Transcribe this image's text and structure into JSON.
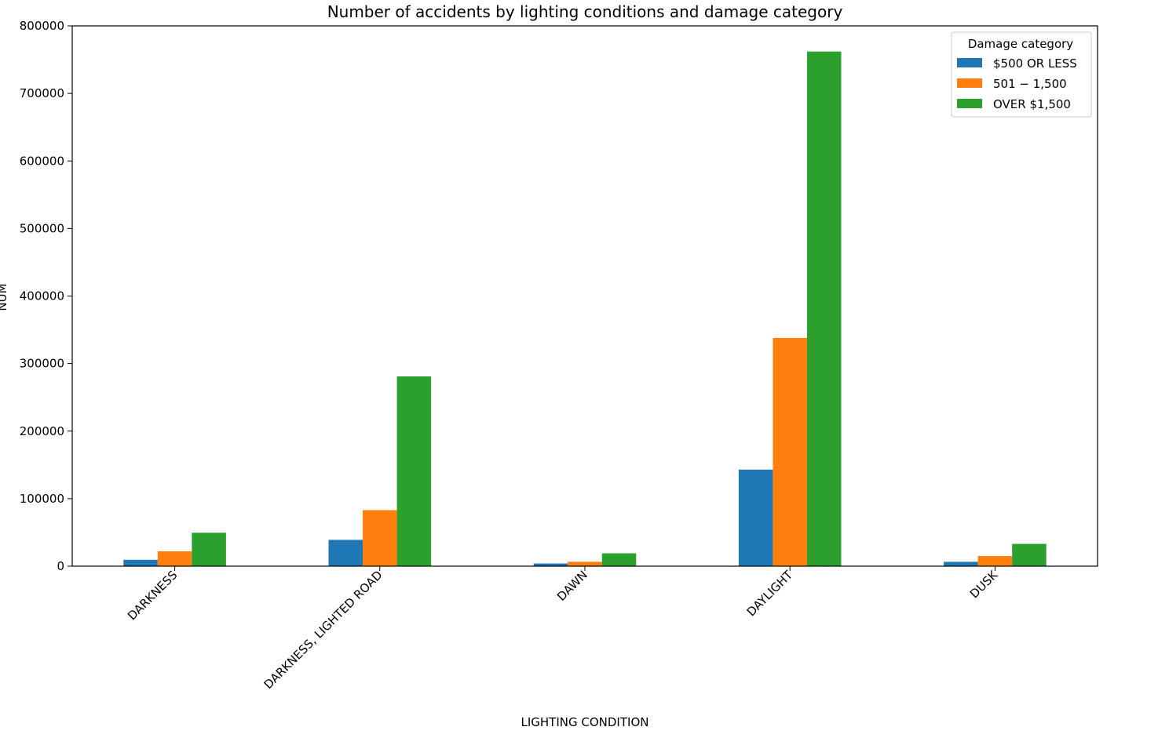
{
  "chart_data": {
    "type": "bar",
    "title": "Number of accidents by lighting conditions and damage category",
    "xlabel": "LIGHTING CONDITION",
    "ylabel": "NUM",
    "ylim": [
      0,
      800000
    ],
    "yticks": [
      0,
      100000,
      200000,
      300000,
      400000,
      500000,
      600000,
      700000,
      800000
    ],
    "grid": false,
    "legend": {
      "title": "Damage category",
      "placement": "top-right"
    },
    "categories": [
      "DARKNESS",
      "DARKNESS, LIGHTED ROAD",
      "DAWN",
      "DAYLIGHT",
      "DUSK"
    ],
    "series": [
      {
        "name": "$500 OR LESS",
        "color": "#1f77b4",
        "values": [
          9500,
          39000,
          4000,
          143000,
          6500
        ]
      },
      {
        "name": "$501 - $1,500",
        "label": "501 − 1,500",
        "color": "#ff7f0e",
        "values": [
          22000,
          83000,
          6500,
          338000,
          15000
        ]
      },
      {
        "name": "OVER $1,500",
        "color": "#2ca02c",
        "values": [
          49500,
          281000,
          19000,
          762000,
          33000
        ]
      }
    ]
  }
}
